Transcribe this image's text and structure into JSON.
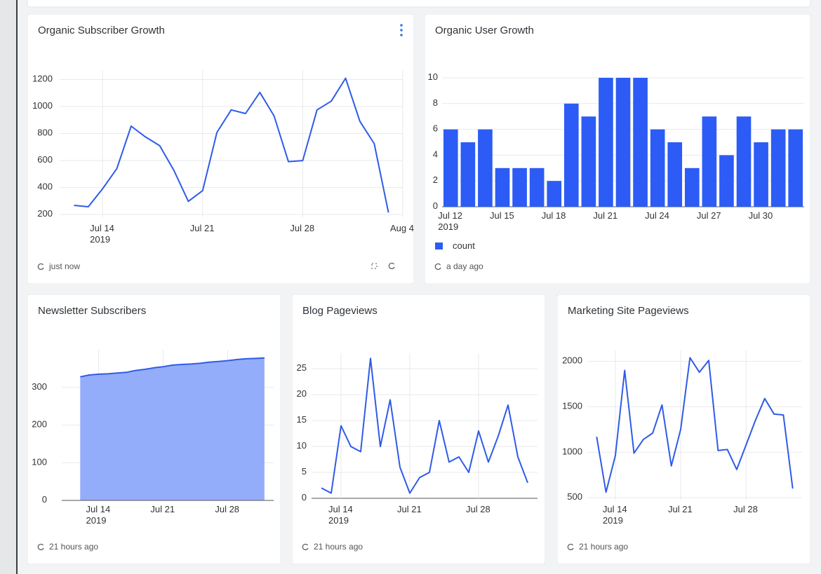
{
  "chart_data": [
    {
      "type": "line",
      "title": "Organic Subscriber Growth",
      "refreshed": "just now",
      "color": "#2f5be8",
      "grid": true,
      "x": [
        "2019-07-12",
        "2019-07-13",
        "2019-07-14",
        "2019-07-15",
        "2019-07-16",
        "2019-07-17",
        "2019-07-18",
        "2019-07-19",
        "2019-07-20",
        "2019-07-21",
        "2019-07-22",
        "2019-07-23",
        "2019-07-24",
        "2019-07-25",
        "2019-07-26",
        "2019-07-27",
        "2019-07-28",
        "2019-07-29",
        "2019-07-30",
        "2019-07-31",
        "2019-08-01",
        "2019-08-02",
        "2019-08-03"
      ],
      "values": [
        268,
        258,
        390,
        540,
        855,
        775,
        710,
        525,
        298,
        378,
        808,
        975,
        948,
        1105,
        930,
        592,
        600,
        975,
        1040,
        1210,
        890,
        725,
        215
      ],
      "xlim": [
        "2019-07-11",
        "2019-08-04"
      ],
      "ylim": [
        180,
        1270
      ],
      "xticks": [
        {
          "value": "2019-07-14",
          "label": "Jul 14\n2019"
        },
        {
          "value": "2019-07-21",
          "label": "Jul 21"
        },
        {
          "value": "2019-07-28",
          "label": "Jul 28"
        },
        {
          "value": "2019-08-04",
          "label": "Aug 4"
        }
      ],
      "yticks": [
        200,
        400,
        600,
        800,
        1000,
        1200
      ]
    },
    {
      "type": "bar",
      "title": "Organic User Growth",
      "refreshed": "a day ago",
      "grid": true,
      "legend": "bottom-left",
      "categories": [
        "Jul 12\n2019",
        null,
        null,
        "Jul 15",
        null,
        null,
        "Jul 18",
        null,
        null,
        "Jul 21",
        null,
        null,
        "Jul 24",
        null,
        null,
        "Jul 27",
        null,
        null,
        "Jul 30",
        null,
        null
      ],
      "series": [
        {
          "name": "count",
          "color": "#2c5cf5",
          "values": [
            6,
            5,
            6,
            3,
            3,
            3,
            2,
            8,
            7,
            10,
            10,
            10,
            6,
            5,
            3,
            7,
            4,
            7,
            5,
            6,
            6
          ]
        }
      ],
      "ylim": [
        0,
        10
      ],
      "yticks": [
        0,
        2,
        4,
        6,
        8,
        10
      ]
    },
    {
      "type": "area",
      "title": "Newsletter Subscribers",
      "refreshed": "21 hours ago",
      "color": "#2f5be8",
      "fill": "#94adfb",
      "grid": true,
      "x": [
        "2019-07-12",
        "2019-07-13",
        "2019-07-14",
        "2019-07-15",
        "2019-07-16",
        "2019-07-17",
        "2019-07-18",
        "2019-07-19",
        "2019-07-20",
        "2019-07-21",
        "2019-07-22",
        "2019-07-23",
        "2019-07-24",
        "2019-07-25",
        "2019-07-26",
        "2019-07-27",
        "2019-07-28",
        "2019-07-29",
        "2019-07-30",
        "2019-07-31",
        "2019-08-01"
      ],
      "values": [
        328,
        333,
        335,
        336,
        338,
        340,
        345,
        348,
        352,
        355,
        359,
        361,
        362,
        364,
        367,
        369,
        371,
        374,
        376,
        377,
        378
      ],
      "xlim": [
        "2019-07-10",
        "2019-08-02"
      ],
      "ylim": [
        0,
        400
      ],
      "xticks": [
        {
          "value": "2019-07-14",
          "label": "Jul 14\n2019"
        },
        {
          "value": "2019-07-21",
          "label": "Jul 21"
        },
        {
          "value": "2019-07-28",
          "label": "Jul 28"
        }
      ],
      "yticks": [
        0,
        100,
        200,
        300
      ]
    },
    {
      "type": "line",
      "title": "Blog Pageviews",
      "refreshed": "21 hours ago",
      "color": "#2f5be8",
      "grid": true,
      "x": [
        "2019-07-12",
        "2019-07-13",
        "2019-07-14",
        "2019-07-15",
        "2019-07-16",
        "2019-07-17",
        "2019-07-18",
        "2019-07-19",
        "2019-07-20",
        "2019-07-21",
        "2019-07-22",
        "2019-07-23",
        "2019-07-24",
        "2019-07-25",
        "2019-07-26",
        "2019-07-27",
        "2019-07-28",
        "2019-07-29",
        "2019-07-30",
        "2019-07-31",
        "2019-08-01",
        "2019-08-02"
      ],
      "values": [
        2,
        1,
        14,
        10,
        9,
        27,
        10,
        19,
        6,
        1,
        4,
        5,
        15,
        7,
        8,
        5,
        13,
        7,
        12,
        18,
        8,
        3
      ],
      "xlim": [
        "2019-07-11",
        "2019-08-03"
      ],
      "ylim": [
        0,
        28
      ],
      "xticks": [
        {
          "value": "2019-07-14",
          "label": "Jul 14\n2019"
        },
        {
          "value": "2019-07-21",
          "label": "Jul 21"
        },
        {
          "value": "2019-07-28",
          "label": "Jul 28"
        }
      ],
      "yticks": [
        0,
        5,
        10,
        15,
        20,
        25
      ]
    },
    {
      "type": "line",
      "title": "Marketing Site Pageviews",
      "refreshed": "21 hours ago",
      "color": "#2f5be8",
      "grid": true,
      "x": [
        "2019-07-12",
        "2019-07-13",
        "2019-07-14",
        "2019-07-15",
        "2019-07-16",
        "2019-07-17",
        "2019-07-18",
        "2019-07-19",
        "2019-07-20",
        "2019-07-21",
        "2019-07-22",
        "2019-07-23",
        "2019-07-24",
        "2019-07-25",
        "2019-07-26",
        "2019-07-27",
        "2019-07-28",
        "2019-07-29",
        "2019-07-30",
        "2019-07-31",
        "2019-08-01",
        "2019-08-02"
      ],
      "values": [
        1170,
        560,
        960,
        1900,
        990,
        1140,
        1210,
        1520,
        850,
        1250,
        2040,
        1880,
        2010,
        1020,
        1030,
        810,
        1080,
        1350,
        1590,
        1420,
        1410,
        600
      ],
      "xlim": [
        "2019-07-11",
        "2019-08-03"
      ],
      "ylim": [
        470,
        2120
      ],
      "xticks": [
        {
          "value": "2019-07-14",
          "label": "Jul 14\n2019"
        },
        {
          "value": "2019-07-21",
          "label": "Jul 21"
        },
        {
          "value": "2019-07-28",
          "label": "Jul 28"
        }
      ],
      "yticks": [
        500,
        1000,
        1500,
        2000
      ]
    }
  ]
}
